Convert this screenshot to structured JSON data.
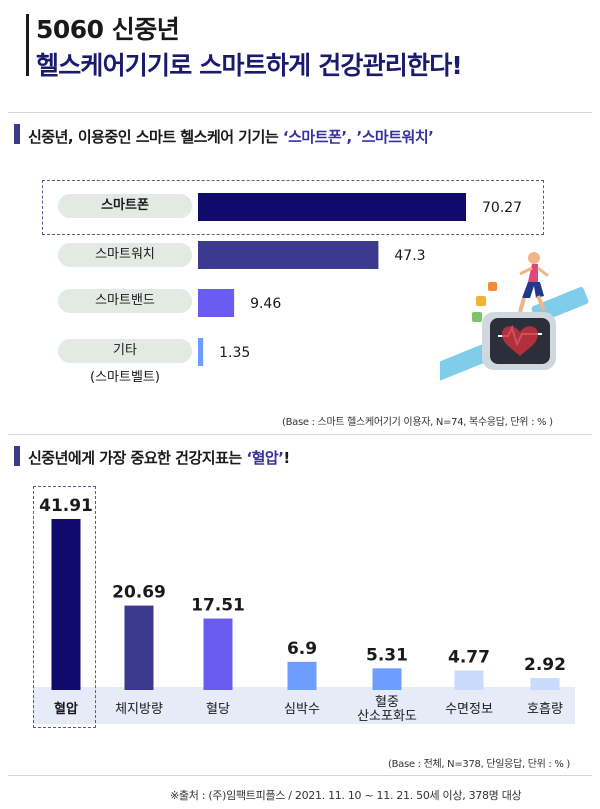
{
  "header": {
    "line1": "5060 신중년",
    "line2": "헬스케어기기로 스마트하게 건강관리한다!"
  },
  "section1": {
    "title_prefix": "신중년, 이용중인 스마트 헬스케어 기기는 ",
    "title_highlight": "‘스마트폰’, ’스마트워치’",
    "base_note": "(Base : 스마트 헬스케어기기 이용자, N=74,  복수응답, 단위 : % )"
  },
  "section2": {
    "title_prefix": "신중년에게 가장 중요한 건강지표는 ",
    "title_highlight": "‘혈압’",
    "title_suffix": "!",
    "base_note": "(Base : 전체, N=378, 단일응답, 단위 : % )"
  },
  "footer": "※출처 : (주)임팩트피플스 / 2021. 11. 10  ~  11. 21. 50세 이상, 378명 대상",
  "colors": {
    "navy": "#0f0a6b",
    "indigo": "#3b3a8f",
    "violet": "#6a5cf0",
    "blue": "#6c9dff",
    "pale": "#c9dafd",
    "label_bg": "#e3e9e4",
    "base_band": "#e6ebf8"
  },
  "illustration": "smartwatch-fitness-illustration",
  "chart_data": [
    {
      "type": "bar",
      "orientation": "horizontal",
      "categories": [
        "스마트폰",
        "스마트워치",
        "스마트밴드",
        "기타"
      ],
      "category_sublabels": [
        "",
        "",
        "",
        "(스마트벨트)"
      ],
      "values": [
        70.27,
        47.3,
        9.46,
        1.35
      ],
      "value_labels": [
        "70.27",
        "47.3",
        "9.46",
        "1.35"
      ],
      "bar_colors": [
        "#0f0a6b",
        "#3b3a8f",
        "#6a5cf0",
        "#6c9dff"
      ],
      "highlight": "스마트폰",
      "unit": "%"
    },
    {
      "type": "bar",
      "orientation": "vertical",
      "categories": [
        "혈압",
        "체지방량",
        "혈당",
        "심박수",
        "혈중 산소포화도",
        "수면정보",
        "호흡량"
      ],
      "category_lines": [
        [
          "혈압"
        ],
        [
          "체지방량"
        ],
        [
          "혈당"
        ],
        [
          "심박수"
        ],
        [
          "혈중",
          "산소포화도"
        ],
        [
          "수면정보"
        ],
        [
          "호흡량"
        ]
      ],
      "values": [
        41.91,
        20.69,
        17.51,
        6.9,
        5.31,
        4.77,
        2.92
      ],
      "value_labels": [
        "41.91",
        "20.69",
        "17.51",
        "6.9",
        "5.31",
        "4.77",
        "2.92"
      ],
      "bar_colors": [
        "#0f0a6b",
        "#3b3a8f",
        "#6a5cf0",
        "#6c9dff",
        "#6c9dff",
        "#c9dafd",
        "#c9dafd"
      ],
      "highlight": "혈압",
      "unit": "%"
    }
  ]
}
